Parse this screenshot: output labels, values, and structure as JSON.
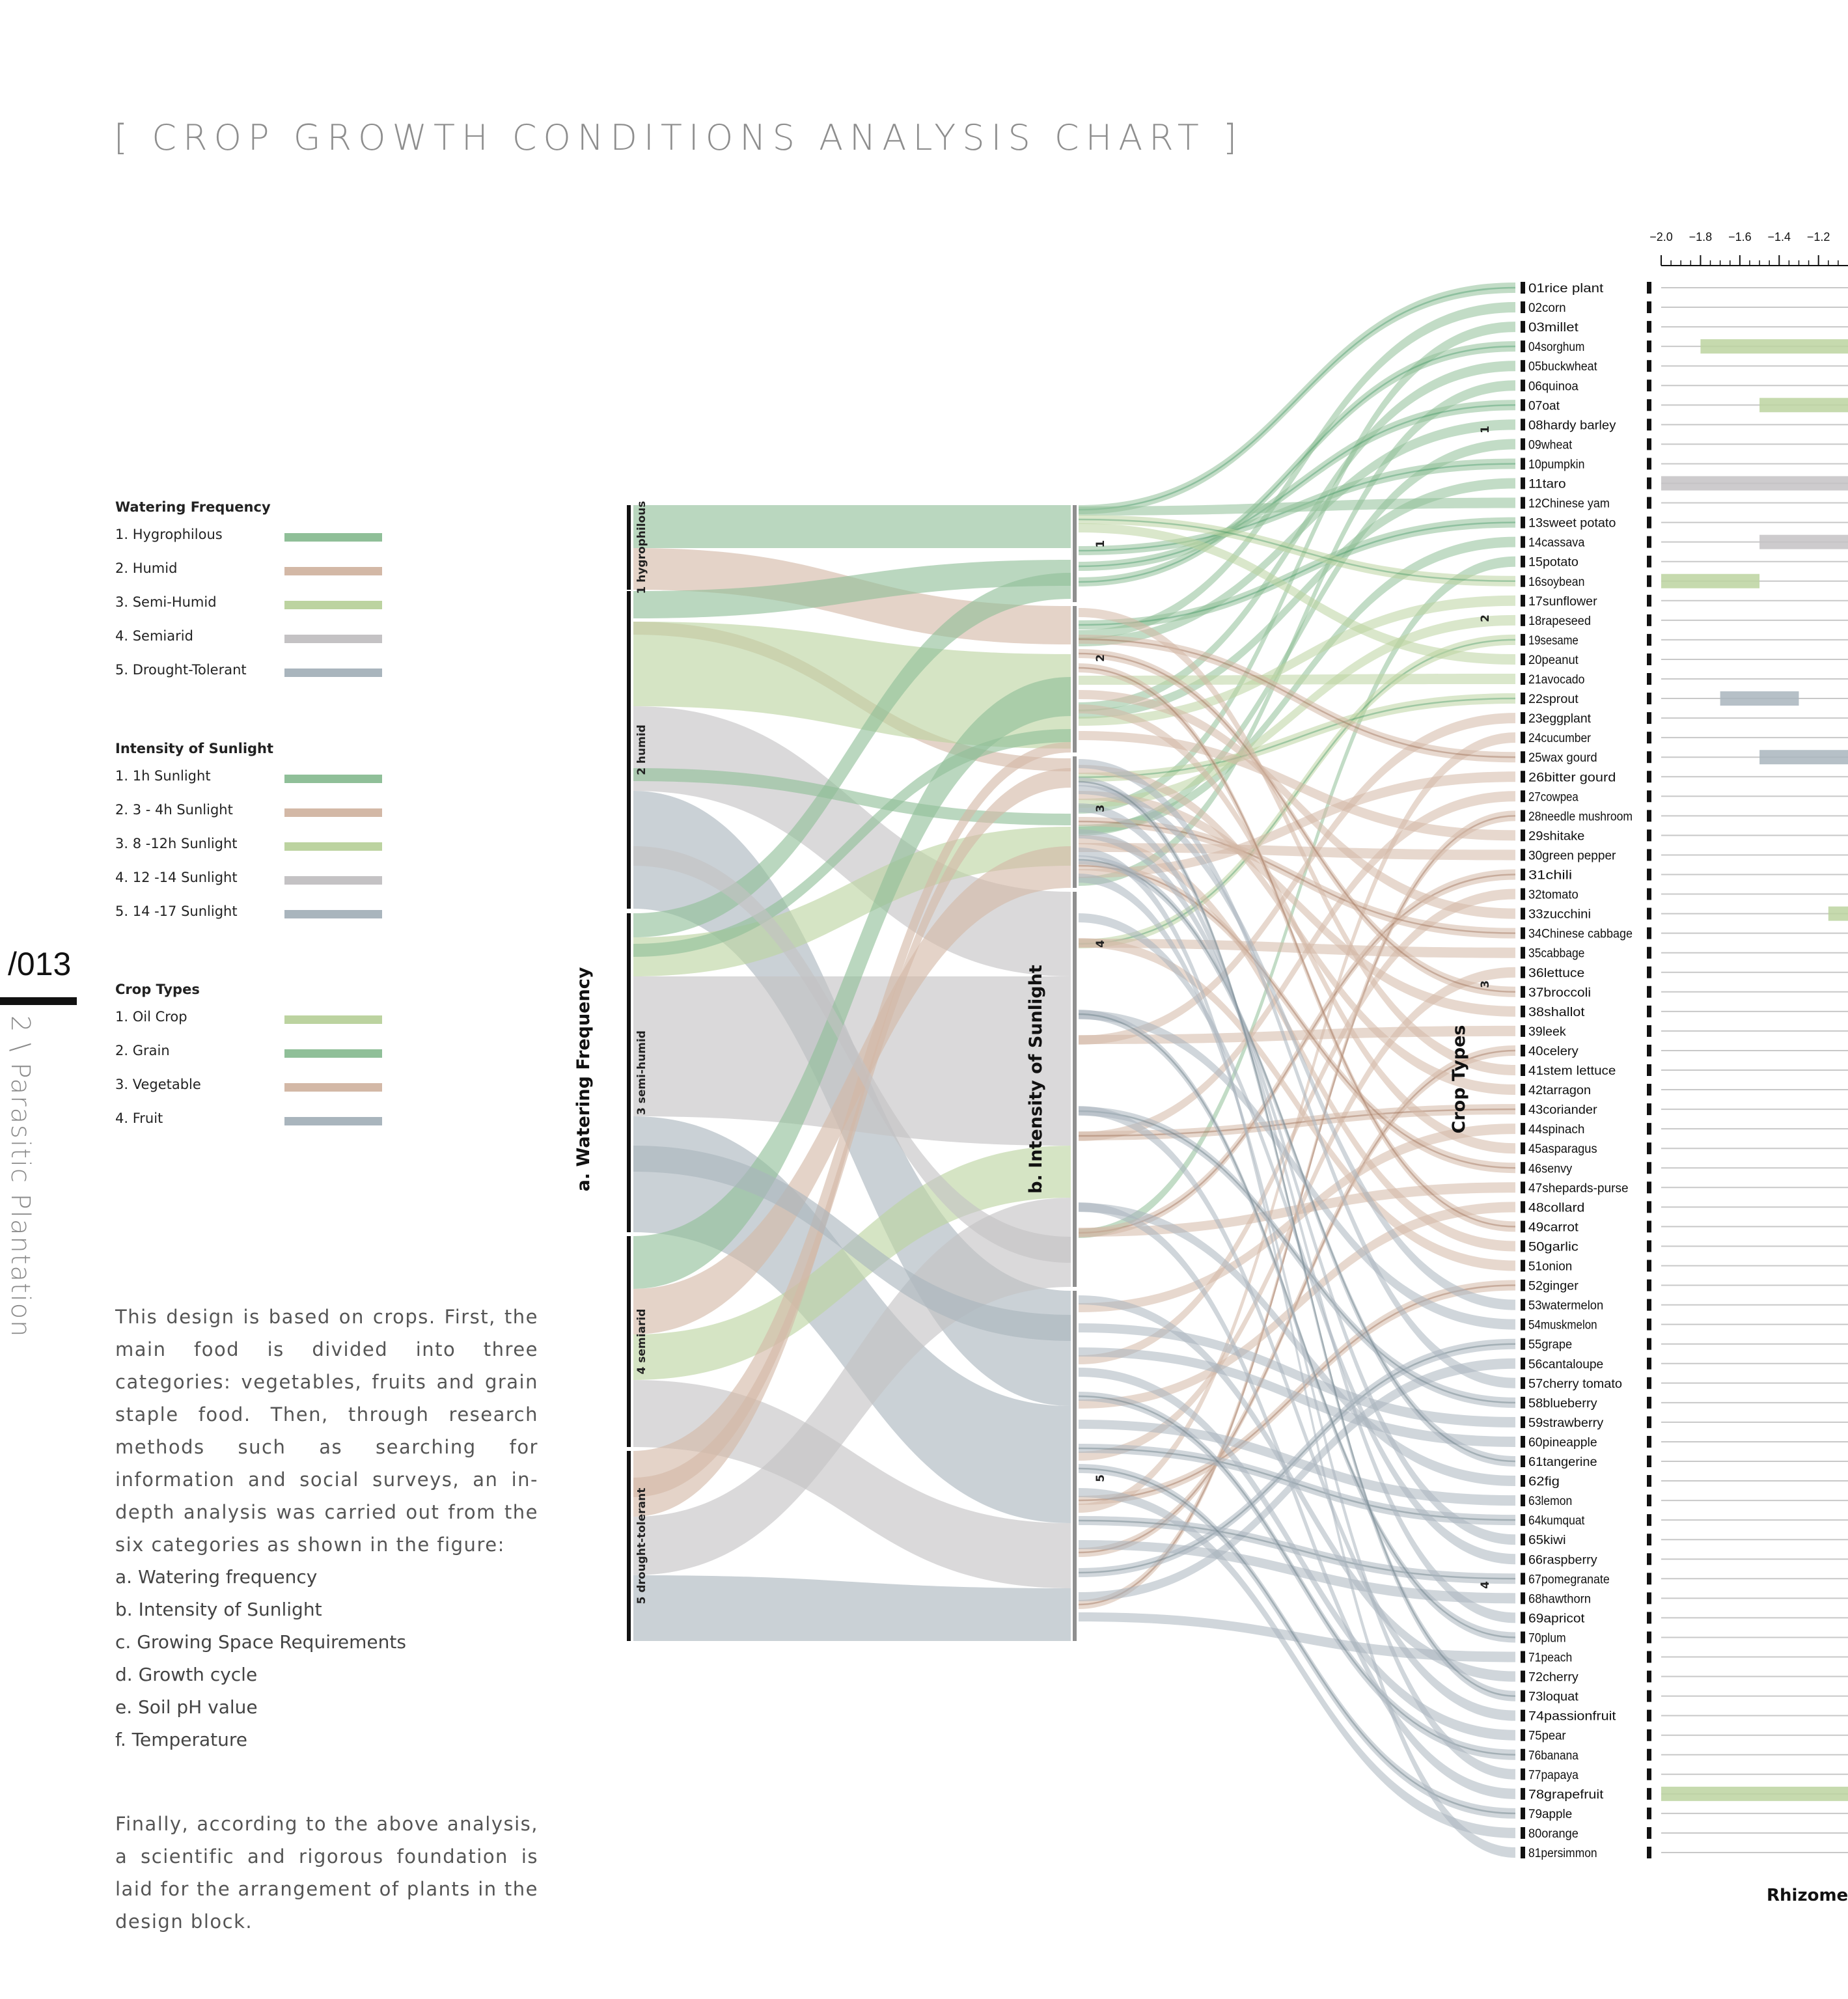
{
  "page": {
    "title": "[ CROP GROWTH CONDITIONS ANALYSIS CHART ]",
    "page_number": "/013",
    "section": "2 \\ Parasitic Plantation"
  },
  "legends": [
    {
      "title": "Watering Frequency",
      "items": [
        {
          "label": "1. Hygrophilous",
          "color": "#8fbf98"
        },
        {
          "label": "2. Humid",
          "color": "#d3b8a6"
        },
        {
          "label": "3. Semi-Humid",
          "color": "#bcd3a0"
        },
        {
          "label": "4. Semiarid",
          "color": "#c4c2c4"
        },
        {
          "label": "5. Drought-Tolerant",
          "color": "#a9b5bd"
        }
      ]
    },
    {
      "title": "Intensity of Sunlight",
      "items": [
        {
          "label": "1. 1h Sunlight",
          "color": "#8fbf98"
        },
        {
          "label": "2. 3 - 4h Sunlight",
          "color": "#d3b8a6"
        },
        {
          "label": "3. 8 -12h Sunlight",
          "color": "#bcd3a0"
        },
        {
          "label": "4. 12 -14 Sunlight",
          "color": "#c4c2c4"
        },
        {
          "label": "5. 14 -17 Sunlight",
          "color": "#a9b5bd"
        }
      ]
    },
    {
      "title": "Crop Types",
      "items": [
        {
          "label": "1. Oil Crop",
          "color": "#bcd3a0"
        },
        {
          "label": "2. Grain",
          "color": "#8fbf98"
        },
        {
          "label": "3. Vegetable",
          "color": "#d3b8a6"
        },
        {
          "label": "4. Fruit",
          "color": "#a9b5bd"
        }
      ]
    }
  ],
  "description": {
    "intro": "This design is based on crops. First, the main food is divided into three categories: vegetables, fruits and grain staple food. Then, through research methods such as searching for information and social surveys, an in-depth analysis was carried out from the six categories as shown in the figure:",
    "list": [
      "a.  Watering frequency",
      "b.  Intensity of Sunlight",
      "c.  Growing Space Requirements",
      "d.  Growth cycle",
      "e.  Soil pH value",
      "f.  Temperature"
    ],
    "conclusion": "Finally, according to the above analysis, a scientific and rigorous foundation is laid for the arrangement of plants in the design block."
  },
  "chart_data": {
    "type": "sankey",
    "axes": [
      {
        "label": "a. Watering Frequency",
        "nodes": [
          "1 hygrophilous",
          "2 humid",
          "3 semi-humid",
          "4 semiarid",
          "5 drought-tolerant"
        ]
      },
      {
        "label": "b. Intensity of Sunlight",
        "nodes": [
          "1",
          "2",
          "3",
          "4",
          "5"
        ]
      },
      {
        "label": "Crop Types",
        "nodes": [
          "1",
          "2",
          "3",
          "4"
        ]
      }
    ],
    "palette": {
      "green": "#8fbf98",
      "tan": "#d3b8a6",
      "lightgreen": "#bcd3a0",
      "grey": "#c4c2c4",
      "bluegrey": "#a9b5bd",
      "darkgreen": "#2e8b57",
      "darkbrown": "#8b5a3c",
      "darkslate": "#4f6770"
    },
    "flows_water_to_sun": [
      {
        "from": "1 hygrophilous",
        "to": "1",
        "group": "green"
      },
      {
        "from": "1 hygrophilous",
        "to": "2",
        "group": "tan"
      },
      {
        "from": "1 hygrophilous",
        "to": "3",
        "group": "tan"
      },
      {
        "from": "2 humid",
        "to": "1",
        "group": "green"
      },
      {
        "from": "2 humid",
        "to": "2",
        "group": "tan"
      },
      {
        "from": "2 humid",
        "to": "3",
        "group": "lightgreen"
      },
      {
        "from": "2 humid",
        "to": "4",
        "group": "grey"
      },
      {
        "from": "2 humid",
        "to": "5",
        "group": "bluegrey"
      },
      {
        "from": "3 semi-humid",
        "to": "1",
        "group": "green"
      },
      {
        "from": "3 semi-humid",
        "to": "3",
        "group": "lightgreen"
      },
      {
        "from": "3 semi-humid",
        "to": "4",
        "group": "grey"
      },
      {
        "from": "3 semi-humid",
        "to": "5",
        "group": "bluegrey"
      },
      {
        "from": "4 semiarid",
        "to": "2",
        "group": "green"
      },
      {
        "from": "4 semiarid",
        "to": "3",
        "group": "tan"
      },
      {
        "from": "4 semiarid",
        "to": "4",
        "group": "lightgreen"
      },
      {
        "from": "4 semiarid",
        "to": "5",
        "group": "grey"
      },
      {
        "from": "5 drought-tolerant",
        "to": "2",
        "group": "tan"
      },
      {
        "from": "5 drought-tolerant",
        "to": "3",
        "group": "tan"
      },
      {
        "from": "5 drought-tolerant",
        "to": "4",
        "group": "grey"
      },
      {
        "from": "5 drought-tolerant",
        "to": "5",
        "group": "bluegrey"
      }
    ],
    "crops": [
      "01rice plant",
      "02corn",
      "03millet",
      "04sorghum",
      "05buckwheat",
      "06quinoa",
      "07oat",
      "08hardy barley",
      "09wheat",
      "10pumpkin",
      "11taro",
      "12Chinese yam",
      "13sweet potato",
      "14cassava",
      "15potato",
      "16soybean",
      "17sunflower",
      "18rapeseed",
      "19sesame",
      "20peanut",
      "21avocado",
      "22sprout",
      "23eggplant",
      "24cucumber",
      "25wax gourd",
      "26bitter gourd",
      "27cowpea",
      "28needle mushroom",
      "29shitake",
      "30green pepper",
      "31chili",
      "32tomato",
      "33zucchini",
      "34Chinese cabbage",
      "35cabbage",
      "36lettuce",
      "37broccoli",
      "38shallot",
      "39leek",
      "40celery",
      "41stem lettuce",
      "42tarragon",
      "43coriander",
      "44spinach",
      "45asparagus",
      "46senvy",
      "47shepards-purse",
      "48collard",
      "49carrot",
      "50garlic",
      "51onion",
      "52ginger",
      "53watermelon",
      "54muskmelon",
      "55grape",
      "56cantaloupe",
      "57cherry tomato",
      "58blueberry",
      "59strawberry",
      "60pineapple",
      "61tangerine",
      "62fig",
      "63lemon",
      "64kumquat",
      "65kiwi",
      "66raspberry",
      "67pomegranate",
      "68hawthorn",
      "69apricot",
      "70plum",
      "71peach",
      "72cherry",
      "73loquat",
      "74passionfruit",
      "75pear",
      "76banana",
      "77papaya",
      "78grapefruit",
      "79apple",
      "80orange",
      "81persimmon"
    ],
    "soil_ph_axis": {
      "ticks": [
        "−2.0",
        "−1.8",
        "−1.6",
        "−1.4",
        "−1.2"
      ],
      "xlim": [
        -2.0,
        -1.05
      ],
      "bars": [
        {
          "crop": "04sorghum",
          "start": -1.8,
          "end": -1.05,
          "group": "lightgreen"
        },
        {
          "crop": "07oat",
          "start": -1.5,
          "end": -1.05,
          "group": "lightgreen"
        },
        {
          "crop": "11taro",
          "start": -2.0,
          "end": -1.05,
          "group": "grey"
        },
        {
          "crop": "14cassava",
          "start": -1.5,
          "end": -1.05,
          "group": "grey"
        },
        {
          "crop": "16soybean",
          "start": -2.0,
          "end": -1.5,
          "group": "lightgreen"
        },
        {
          "crop": "22sprout",
          "start": -1.7,
          "end": -1.3,
          "group": "bluegrey"
        },
        {
          "crop": "25wax gourd",
          "start": -1.5,
          "end": -1.05,
          "group": "bluegrey"
        },
        {
          "crop": "33zucchini",
          "start": -1.15,
          "end": -1.05,
          "group": "lightgreen"
        },
        {
          "crop": "78grapefruit",
          "start": -2.0,
          "end": -1.05,
          "group": "lightgreen"
        }
      ],
      "xlabel": "Rhizome"
    }
  }
}
